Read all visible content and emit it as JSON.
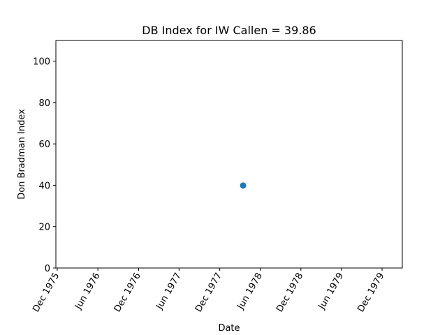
{
  "chart_data": {
    "type": "scatter",
    "title": "DB Index for IW Callen = 39.86",
    "xlabel": "Date",
    "ylabel": "Don Bradman Index",
    "xlim": [
      "1975-11-25",
      "1980-03-01"
    ],
    "ylim": [
      0,
      110
    ],
    "x_ticks": [
      {
        "date": "1975-12-01",
        "label": "Dec 1975"
      },
      {
        "date": "1976-06-01",
        "label": "Jun 1976"
      },
      {
        "date": "1976-12-01",
        "label": "Dec 1976"
      },
      {
        "date": "1977-06-01",
        "label": "Jun 1977"
      },
      {
        "date": "1977-12-01",
        "label": "Dec 1977"
      },
      {
        "date": "1978-06-01",
        "label": "Jun 1978"
      },
      {
        "date": "1978-12-01",
        "label": "Dec 1978"
      },
      {
        "date": "1979-06-01",
        "label": "Jun 1979"
      },
      {
        "date": "1979-12-01",
        "label": "Dec 1979"
      }
    ],
    "y_ticks": [
      0,
      20,
      40,
      60,
      80,
      100
    ],
    "points": [
      {
        "x": "1978-03-16",
        "y": 39.86
      }
    ],
    "grid": false,
    "colors": {
      "point": "#1f77b4",
      "axis": "#000000"
    }
  }
}
